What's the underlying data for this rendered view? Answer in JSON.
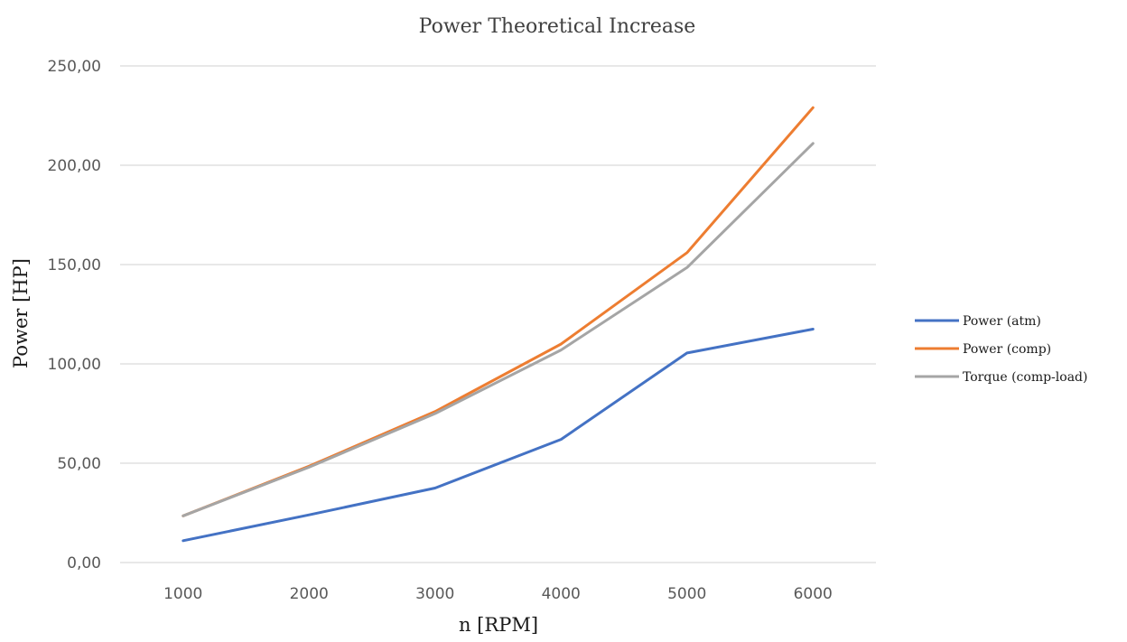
{
  "chart_data": {
    "type": "line",
    "title": "Power Theoretical Increase",
    "xlabel": "n [RPM]",
    "ylabel": "Power [HP]",
    "categories": [
      "1000",
      "2000",
      "3000",
      "4000",
      "5000",
      "6000"
    ],
    "ylim": [
      0,
      250
    ],
    "y_ticks": [
      "0,00",
      "50,00",
      "100,00",
      "150,00",
      "200,00",
      "250,00"
    ],
    "grid": true,
    "legend_position": "right",
    "series": [
      {
        "name": "Power (atm)",
        "color": "#4472C4",
        "values": [
          11,
          24,
          37.5,
          62,
          105.5,
          117.5
        ]
      },
      {
        "name": "Power (comp)",
        "color": "#ED7D31",
        "values": [
          23.5,
          48.5,
          76,
          110,
          156,
          229
        ]
      },
      {
        "name": "Torque (comp-load)",
        "color": "#A5A5A5",
        "values": [
          23.5,
          48,
          75,
          107,
          148.5,
          211
        ]
      }
    ]
  }
}
